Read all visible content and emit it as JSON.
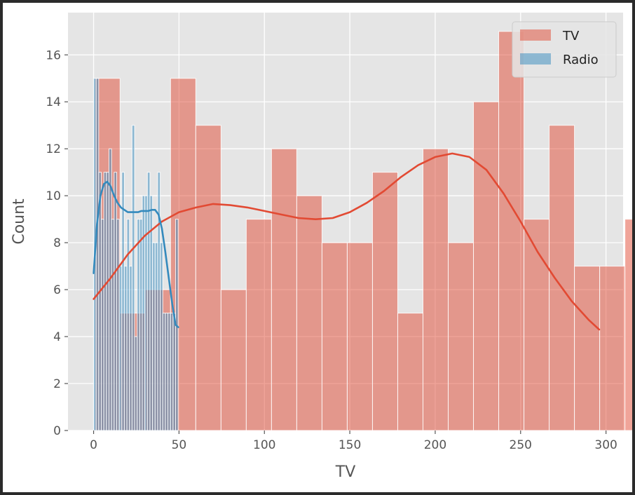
{
  "chart_data": {
    "type": "histogram",
    "title": "",
    "xlabel": "TV",
    "ylabel": "Count",
    "xlim": [
      -15,
      310
    ],
    "ylim": [
      0,
      17.8
    ],
    "grid": true,
    "legend_position": "top-right",
    "x_ticks": [
      0,
      50,
      100,
      150,
      200,
      250,
      300
    ],
    "y_ticks": [
      0,
      2,
      4,
      6,
      8,
      10,
      12,
      14,
      16
    ],
    "series": [
      {
        "name": "TV",
        "color": "#E24A33",
        "alpha": 0.5,
        "bin_start": 0.7,
        "bin_width": 14.78,
        "counts": [
          15,
          5,
          6,
          15,
          13,
          6,
          9,
          12,
          10,
          8,
          8,
          11,
          5,
          12,
          8,
          14,
          17,
          9,
          13,
          7,
          7,
          9
        ],
        "kde": [
          [
            0,
            5.6
          ],
          [
            10,
            6.5
          ],
          [
            20,
            7.5
          ],
          [
            30,
            8.3
          ],
          [
            40,
            8.9
          ],
          [
            50,
            9.3
          ],
          [
            60,
            9.5
          ],
          [
            70,
            9.65
          ],
          [
            80,
            9.6
          ],
          [
            90,
            9.5
          ],
          [
            100,
            9.35
          ],
          [
            110,
            9.2
          ],
          [
            120,
            9.05
          ],
          [
            130,
            9.0
          ],
          [
            140,
            9.05
          ],
          [
            150,
            9.3
          ],
          [
            160,
            9.7
          ],
          [
            170,
            10.2
          ],
          [
            180,
            10.8
          ],
          [
            190,
            11.3
          ],
          [
            200,
            11.65
          ],
          [
            210,
            11.8
          ],
          [
            220,
            11.65
          ],
          [
            230,
            11.1
          ],
          [
            240,
            10.1
          ],
          [
            250,
            8.9
          ],
          [
            260,
            7.6
          ],
          [
            270,
            6.5
          ],
          [
            280,
            5.5
          ],
          [
            290,
            4.7
          ],
          [
            296,
            4.3
          ]
        ]
      },
      {
        "name": "Radio",
        "color": "#348ABD",
        "alpha": 0.5,
        "bin_start": 0.0,
        "bin_width": 1.5,
        "counts": [
          15,
          15,
          11,
          9,
          11,
          11,
          12,
          9,
          11,
          9,
          7,
          11,
          7,
          9,
          7,
          13,
          4,
          9,
          9,
          10,
          10,
          11,
          10,
          8,
          8,
          11,
          8,
          5,
          5,
          5,
          5,
          5,
          9
        ],
        "kde": [
          [
            0,
            6.7
          ],
          [
            2,
            8.8
          ],
          [
            4,
            10.0
          ],
          [
            6,
            10.5
          ],
          [
            8,
            10.6
          ],
          [
            10,
            10.4
          ],
          [
            12,
            10.0
          ],
          [
            14,
            9.7
          ],
          [
            16,
            9.5
          ],
          [
            18,
            9.4
          ],
          [
            20,
            9.3
          ],
          [
            22,
            9.3
          ],
          [
            24,
            9.3
          ],
          [
            26,
            9.3
          ],
          [
            28,
            9.35
          ],
          [
            30,
            9.35
          ],
          [
            32,
            9.35
          ],
          [
            34,
            9.4
          ],
          [
            36,
            9.4
          ],
          [
            38,
            9.2
          ],
          [
            40,
            8.6
          ],
          [
            42,
            7.6
          ],
          [
            44,
            6.5
          ],
          [
            46,
            5.4
          ],
          [
            48,
            4.5
          ],
          [
            49.6,
            4.4
          ]
        ]
      }
    ]
  }
}
